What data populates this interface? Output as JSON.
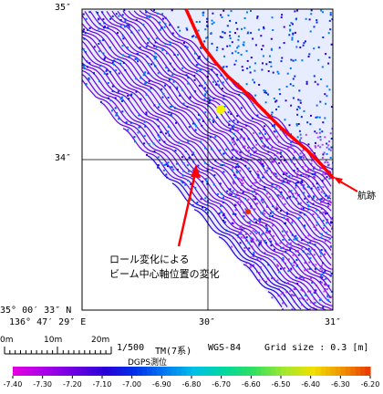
{
  "map": {
    "lat_labels": {
      "top": "35″",
      "mid": "34″",
      "bottom": "35° 00′ 33″ N"
    },
    "lon_labels": {
      "left": "136° 47′ 29″ E",
      "mid": "30″",
      "right": "31″"
    }
  },
  "annotations": {
    "track_label": "航跡",
    "roll_line1": "ロール変化による",
    "roll_line2": "ビーム中心軸位置の変化"
  },
  "scale": {
    "tick0": "0m",
    "tick10": "10m",
    "tick20": "20m",
    "scale_text": "1/500",
    "projection": "TM(7系)",
    "datum": "WGS-84",
    "grid_size": "Grid size : 0.3 [m]",
    "positioning": "DGPS測位"
  },
  "colorbar": {
    "ticks": [
      "-7.40",
      "-7.30",
      "-7.20",
      "-7.10",
      "-7.00",
      "-6.90",
      "-6.80",
      "-6.70",
      "-6.60",
      "-6.50",
      "-6.40",
      "-6.30",
      "-6.20"
    ],
    "colors": [
      "#e000e0",
      "#a800e8",
      "#6a00e0",
      "#2a00d8",
      "#0030e8",
      "#0078f0",
      "#00c0e8",
      "#00d8a0",
      "#30e060",
      "#a0e830",
      "#f0e000",
      "#f09000",
      "#e83000"
    ]
  },
  "colors": {
    "track": "#ff0000",
    "grid": "#000000"
  }
}
